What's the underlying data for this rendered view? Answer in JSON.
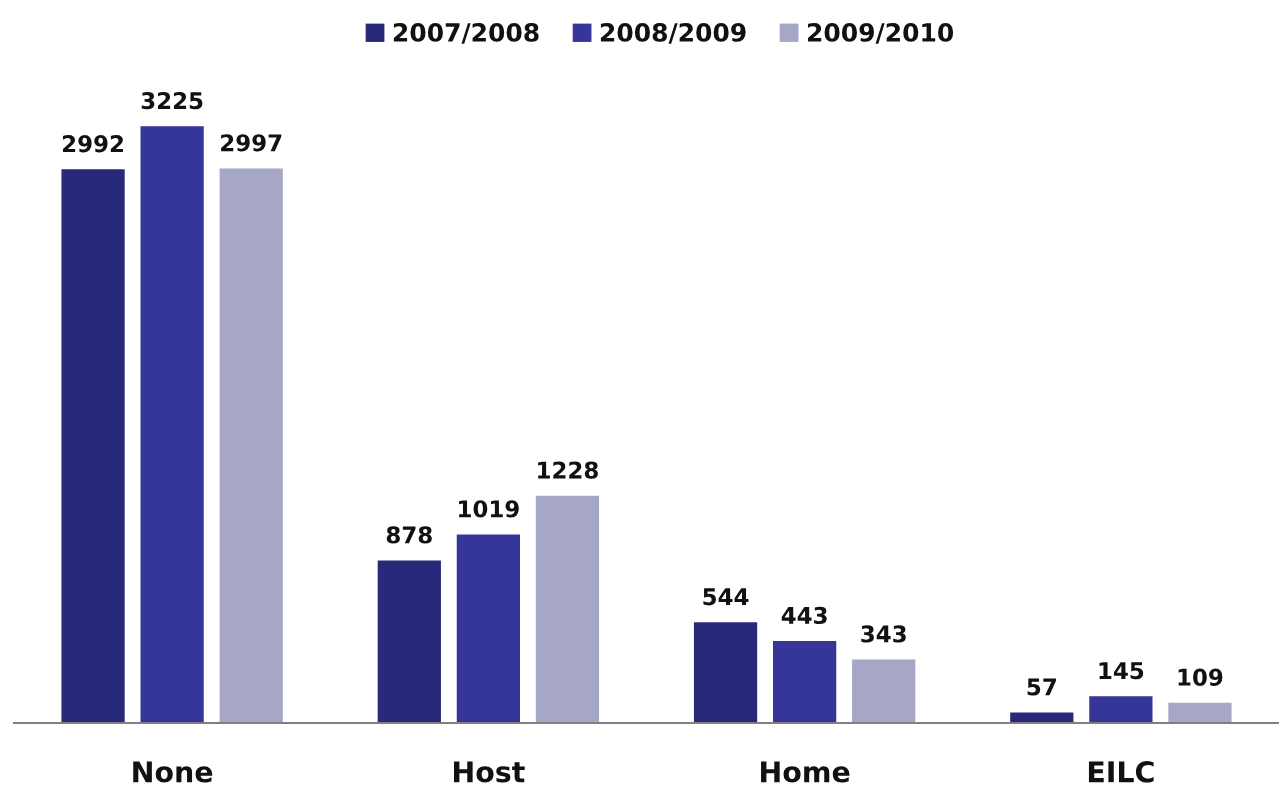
{
  "chart_data": {
    "type": "bar",
    "categories": [
      "None",
      "Host",
      "Home",
      "EILC"
    ],
    "series": [
      {
        "name": "2007/2008",
        "color": "#29297b",
        "values": [
          2992,
          878,
          544,
          57
        ]
      },
      {
        "name": "2008/2009",
        "color": "#35359a",
        "values": [
          3225,
          1019,
          443,
          145
        ]
      },
      {
        "name": "2009/2010",
        "color": "#a6a6c7",
        "values": [
          2997,
          1228,
          343,
          109
        ]
      }
    ],
    "tick_labels": "x",
    "data_labels": true,
    "legend": "top"
  }
}
